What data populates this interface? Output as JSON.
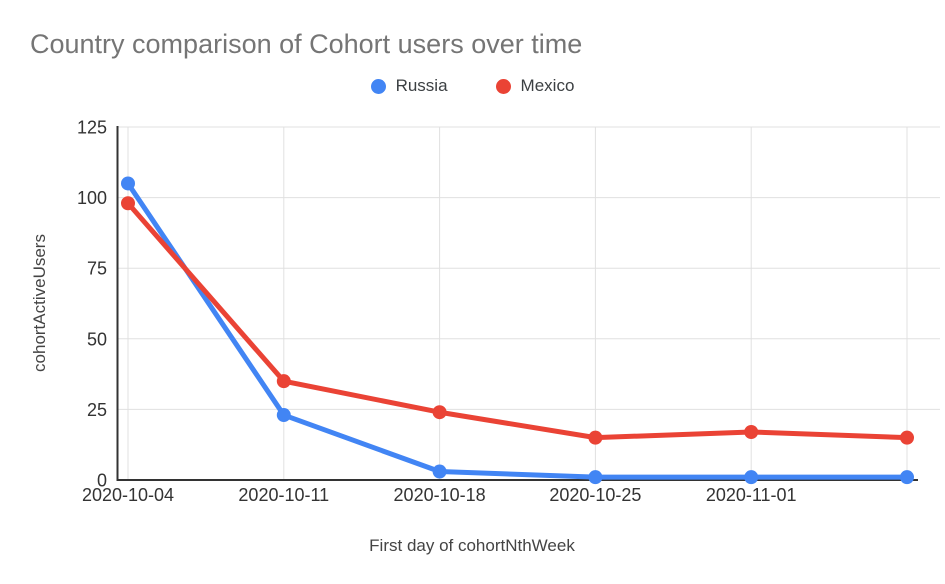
{
  "chart": {
    "title": "Country comparison of Cohort users over time",
    "colors": {
      "title": "#757575",
      "axis_line": "#333333",
      "gridline": "#e0e0e0",
      "tick_label": "#333333",
      "axis_title": "#444444"
    }
  },
  "chart_data": {
    "type": "line",
    "title": "Country comparison of Cohort users over time",
    "xlabel": "First day of cohortNthWeek",
    "ylabel": "cohortActiveUsers",
    "categories": [
      "2020-10-04",
      "2020-10-11",
      "2020-10-18",
      "2020-10-25",
      "2020-11-01",
      ""
    ],
    "series": [
      {
        "name": "Russia",
        "color": "#4285f4",
        "values": [
          105,
          23,
          3,
          1,
          1,
          1
        ]
      },
      {
        "name": "Mexico",
        "color": "#ea4335",
        "values": [
          98,
          35,
          24,
          15,
          17,
          15
        ]
      }
    ],
    "ylim": [
      0,
      125
    ],
    "yticks": [
      0,
      25,
      50,
      75,
      100,
      125
    ],
    "grid": true,
    "legend_position": "top",
    "marker": "circle",
    "line_width": 5,
    "point_radius": 7
  }
}
